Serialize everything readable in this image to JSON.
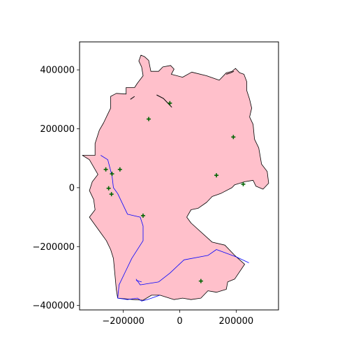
{
  "chart_data": {
    "type": "map",
    "title": "",
    "xlabel": "",
    "ylabel": "",
    "xlim": [
      -355000,
      350000
    ],
    "ylim": [
      -415000,
      495000
    ],
    "x_ticks": [
      {
        "value": -200000,
        "label": "−200000"
      },
      {
        "value": 0,
        "label": "0"
      },
      {
        "value": 200000,
        "label": "200000"
      }
    ],
    "y_ticks": [
      {
        "value": 400000,
        "label": "400000"
      },
      {
        "value": 200000,
        "label": "200000"
      },
      {
        "value": 0,
        "label": "0"
      },
      {
        "value": -200000,
        "label": "−200000"
      },
      {
        "value": -400000,
        "label": "−400000"
      }
    ],
    "grid": false,
    "legend": "none",
    "country": {
      "fill": "#ffc0cb",
      "edge": "#000000",
      "outline": [
        [
          -137500,
          450000
        ],
        [
          -125000,
          445000
        ],
        [
          -110000,
          432000
        ],
        [
          -102500,
          395000
        ],
        [
          -75000,
          395000
        ],
        [
          -60000,
          410000
        ],
        [
          -32500,
          415000
        ],
        [
          -20000,
          402500
        ],
        [
          -30000,
          385000
        ],
        [
          10000,
          375000
        ],
        [
          42500,
          392500
        ],
        [
          95000,
          380000
        ],
        [
          140000,
          365000
        ],
        [
          165000,
          390000
        ],
        [
          185000,
          395000
        ],
        [
          197500,
          405000
        ],
        [
          212500,
          390000
        ],
        [
          227500,
          385000
        ],
        [
          237500,
          360000
        ],
        [
          237500,
          330000
        ],
        [
          247500,
          300000
        ],
        [
          255000,
          270000
        ],
        [
          247500,
          240000
        ],
        [
          260000,
          215000
        ],
        [
          265000,
          165000
        ],
        [
          280000,
          135000
        ],
        [
          290000,
          80000
        ],
        [
          310000,
          55000
        ],
        [
          315000,
          15000
        ],
        [
          295000,
          -5000
        ],
        [
          270000,
          5000
        ],
        [
          260000,
          25000
        ],
        [
          230000,
          20000
        ],
        [
          195000,
          10000
        ],
        [
          185000,
          0
        ],
        [
          145000,
          -20000
        ],
        [
          115000,
          -30000
        ],
        [
          95000,
          -50000
        ],
        [
          65000,
          -70000
        ],
        [
          40000,
          -75000
        ],
        [
          25000,
          -100000
        ],
        [
          40000,
          -120000
        ],
        [
          115000,
          -185000
        ],
        [
          160000,
          -195000
        ],
        [
          195000,
          -230000
        ],
        [
          230000,
          -260000
        ],
        [
          195000,
          -310000
        ],
        [
          170000,
          -320000
        ],
        [
          165000,
          -345000
        ],
        [
          130000,
          -355000
        ],
        [
          100000,
          -350000
        ],
        [
          75000,
          -375000
        ],
        [
          40000,
          -380000
        ],
        [
          10000,
          -375000
        ],
        [
          -20000,
          -380000
        ],
        [
          -70000,
          -365000
        ],
        [
          -100000,
          -365000
        ],
        [
          -130000,
          -382000
        ],
        [
          -165000,
          -380000
        ],
        [
          -220000,
          -375000
        ],
        [
          -225000,
          -345000
        ],
        [
          -235000,
          -240000
        ],
        [
          -245000,
          -210000
        ],
        [
          -260000,
          -180000
        ],
        [
          -275000,
          -160000
        ],
        [
          -320000,
          -100000
        ],
        [
          -300000,
          -75000
        ],
        [
          -305000,
          -40000
        ],
        [
          -320000,
          -10000
        ],
        [
          -310000,
          20000
        ],
        [
          -290000,
          45000
        ],
        [
          -320000,
          95000
        ],
        [
          -345000,
          110000
        ],
        [
          -300000,
          110000
        ],
        [
          -300000,
          150000
        ],
        [
          -285000,
          195000
        ],
        [
          -270000,
          220000
        ],
        [
          -255000,
          250000
        ],
        [
          -245000,
          270000
        ],
        [
          -245000,
          310000
        ],
        [
          -225000,
          320000
        ],
        [
          -190000,
          318000
        ],
        [
          -190000,
          340000
        ],
        [
          -160000,
          340000
        ],
        [
          -150000,
          355000
        ],
        [
          -130000,
          380000
        ],
        [
          -135000,
          410000
        ],
        [
          -145000,
          430000
        ]
      ]
    },
    "coast_segments": [
      [
        [
          -82000,
          315000
        ],
        [
          -58000,
          303000
        ],
        [
          -40000,
          285000
        ],
        [
          -28000,
          273000
        ]
      ],
      [
        [
          -175000,
          300000
        ],
        [
          -160000,
          310000
        ]
      ],
      [
        [
          165000,
          385000
        ],
        [
          180000,
          390000
        ],
        [
          192000,
          395000
        ]
      ]
    ],
    "rivers": {
      "color": "#0000ff",
      "lines": [
        [
          [
            -280000,
            110000
          ],
          [
            -255000,
            95000
          ],
          [
            -240000,
            40000
          ],
          [
            -235000,
            0
          ],
          [
            -220000,
            -20000
          ],
          [
            -185000,
            -90000
          ],
          [
            -140000,
            -100000
          ],
          [
            -130000,
            -130000
          ],
          [
            -130000,
            -180000
          ],
          [
            -170000,
            -240000
          ],
          [
            -190000,
            -280000
          ],
          [
            -215000,
            -330000
          ],
          [
            -220000,
            -375000
          ],
          [
            -185000,
            -380000
          ],
          [
            -150000,
            -375000
          ],
          [
            -135000,
            -385000
          ],
          [
            -115000,
            -380000
          ],
          [
            -70000,
            -365000
          ]
        ],
        [
          [
            -155000,
            -310000
          ],
          [
            -140000,
            -330000
          ],
          [
            -75000,
            -320000
          ],
          [
            -35000,
            -290000
          ],
          [
            15000,
            -245000
          ],
          [
            100000,
            -230000
          ],
          [
            130000,
            -210000
          ],
          [
            200000,
            -235000
          ],
          [
            245000,
            -255000
          ]
        ],
        [
          [
            -155000,
            -315000
          ],
          [
            -135000,
            -320000
          ]
        ]
      ]
    },
    "points": {
      "color": "#006400",
      "marker": "+",
      "coords": [
        [
          -35000,
          287000
        ],
        [
          -110000,
          233000
        ],
        [
          190000,
          172000
        ],
        [
          -262000,
          62000
        ],
        [
          -212000,
          62000
        ],
        [
          -240000,
          47000
        ],
        [
          130000,
          42000
        ],
        [
          225000,
          12000
        ],
        [
          -252000,
          -2000
        ],
        [
          -242000,
          -22000
        ],
        [
          -130000,
          -95000
        ],
        [
          75000,
          -317000
        ]
      ]
    }
  }
}
